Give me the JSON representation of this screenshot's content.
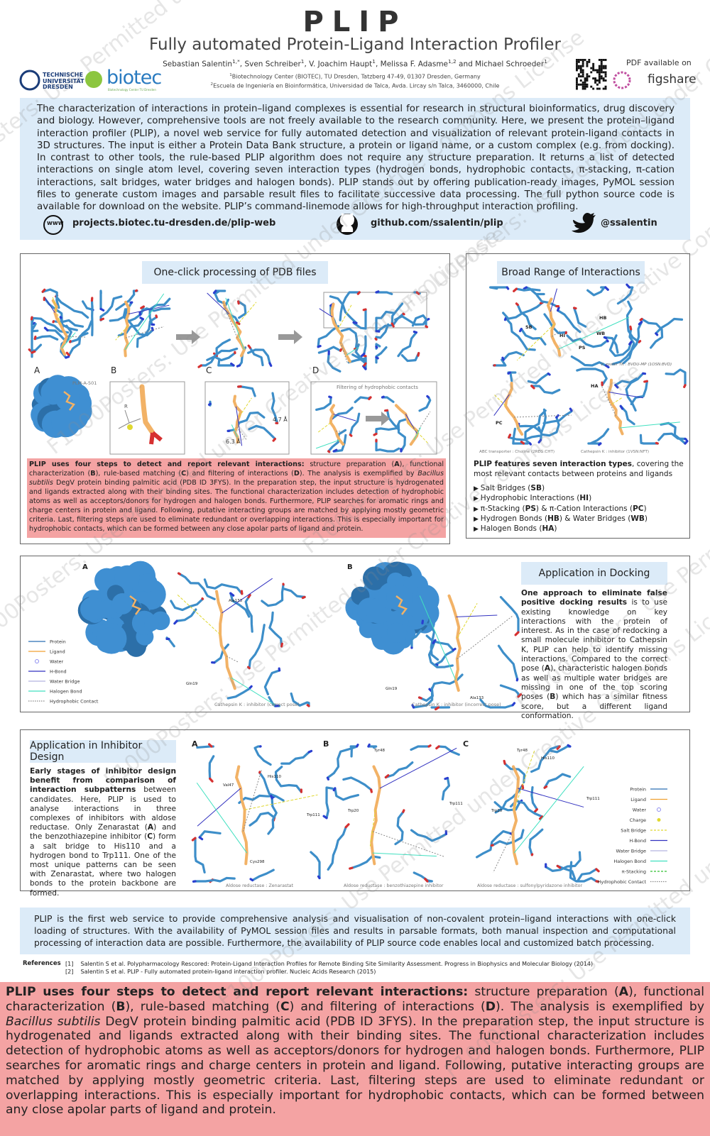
{
  "header": {
    "title": "PLIP",
    "subtitle": "Fully automated Protein-Ligand Interaction Profiler",
    "authors": [
      "Sebastian Salentin",
      "1,*",
      ", Sven Schreiber",
      "1",
      ", V. Joachim Haupt",
      "1",
      ", Melissa F. Adasme",
      "1,2",
      " and Michael Schroeder",
      "1"
    ],
    "affiliations": [
      [
        "1",
        "Biotechnology Center (BIOTEC), TU Dresden, Tatzberg 47-49, 01307 Dresden, Germany"
      ],
      [
        "2",
        "Escuela de Ingeniería en Bioinformática, Universidad de Talca, Avda. Lircay s/n Talca, 3460000, Chile"
      ]
    ],
    "tud_logo": [
      "TECHNISCHE",
      "UNIVERSITÄT",
      "DRESDEN"
    ],
    "biotec_logo": "biotec",
    "biotec_sub": "Biotechnology Center TU Dresden",
    "pdf_note": "PDF available on",
    "figshare": "figshare"
  },
  "abstract": {
    "text": "The characterization of interactions in protein–ligand complexes is essential for research in structural bioinformatics, drug discovery and biology. However, comprehensive tools are not freely available to the research community. Here, we present the protein–ligand interaction profiler (PLIP), a novel web service for fully automated detection and visualization of relevant protein-ligand contacts in 3D structures. The input is either a Protein Data Bank structure, a protein or ligand name, or a custom complex (e.g. from docking). In contrast to other tools, the rule-based PLIP algorithm does not require any structure preparation. It returns a list of detected interactions on single atom level, covering seven interaction types (hydrogen bonds, hydrophobic contacts, π-stacking, π-cation interactions, salt bridges, water bridges and halogen bonds). PLIP stands out by offering publication-ready images, PyMOL session files to generate custom images and parsable result files to facilitate successive data processing. The full python source code is available for download on the website. PLIP’s command-linemode allows for high-throughput interaction profiling.",
    "www_icon": "www",
    "links": [
      "projects.biotec.tu-dresden.de/plip-web",
      "github.com/ssalentin/plip",
      "@ssalentin"
    ]
  },
  "workflow": {
    "heading": "One-click processing of PDB files",
    "labels": [
      "A",
      "B",
      "C",
      "D",
      "PLM-A-501",
      "Filtering of hydrophobic contacts",
      "R",
      "4.7 Å",
      "6.3 Å"
    ],
    "caption": [
      "PLIP uses four steps to detect and report relevant interactions:",
      " structure preparation (",
      "A",
      "), functional characterization (",
      "B",
      "), rule-based matching (",
      "C",
      ") and filtering of interactions (",
      "D",
      "). The analysis is exemplified by ",
      "Bacillus subtilis",
      " DegV protein binding palmitic acid (PDB ID 3FYS). In the preparation step, the input structure is hydrogenated and ligands extracted along with their binding sites.  The functional characterization includes detection of hydrophobic atoms as well as acceptors/donors for hydrogen and halogen bonds. Furthermore, PLIP searches for aromatic rings and charge centers in protein and ligand. Following, putative interacting groups are matched by applying mostly geometric criteria. Last, filtering steps are used to eliminate redundant or overlapping interactions. This is especially important for hydrophobic contacts, which can be formed between any close apolar parts of ligand and protein."
    ]
  },
  "interactions": {
    "heading": "Broad Range of Interactions",
    "labels": [
      "SB",
      "HI",
      "HB",
      "WB",
      "PS",
      "PC",
      "HA"
    ],
    "captions": [
      "V. zoster TK : BVDU-MP (1OSN:BVD)",
      "ABC transporter : Choline (2REG:CHT)",
      "Cathepsin K : inhibitor (1VSN:NFT)"
    ],
    "text": [
      "PLIP features seven interaction types",
      ", covering the most relevant contacts between proteins and ligands"
    ],
    "items": [
      [
        "Salt Bridges (",
        "SB",
        ")"
      ],
      [
        "Hydrophobic Interactions (",
        "HI",
        ")"
      ],
      [
        "π-Stacking (",
        "PS",
        ") & π-Cation Interactions (",
        "PC",
        ")"
      ],
      [
        "Hydrogen Bonds (",
        "HB",
        ") & Water Bridges (",
        "WB",
        ")"
      ],
      [
        "Halogen Bonds (",
        "HA",
        ")"
      ]
    ]
  },
  "docking": {
    "heading": "Application in Docking",
    "text": [
      "One approach to eliminate false positive docking results",
      " is to use existing knowledge on key interactions with the protein of interest. As in the case of redocking a small molecule inhibitor to Cathepsin K, PLIP can help to identify missing interactions. Compared to the correct pose (",
      "A",
      "), characteristic halogen bonds as well as multiple water bridges are missing in one of the top scoring poses (",
      "B",
      ") which has a similar fitness score, but a different ligand conformation."
    ],
    "labels": [
      "A",
      "B",
      "Ala133",
      "Gln19",
      "Gln19",
      "Ala133"
    ],
    "captions": [
      "Cathepsin K : inhibitor (correct pose)",
      "Cathepsin K : inhibitor (incorrect pose)"
    ],
    "legend": [
      {
        "name": "Protein",
        "color": "#2a6fb3",
        "style": "solid"
      },
      {
        "name": "Ligand",
        "color": "#f0a030",
        "style": "solid"
      },
      {
        "name": "Water",
        "color": "#8c8cf0",
        "style": "circle"
      },
      {
        "name": "H-Bond",
        "color": "#3232c0",
        "style": "solid"
      },
      {
        "name": "Water Bridge",
        "color": "#b4b4e0",
        "style": "solid"
      },
      {
        "name": "Halogen Bond",
        "color": "#40e0c0",
        "style": "solid"
      },
      {
        "name": "Hydrophobic Contact",
        "color": "#888888",
        "style": "dotted"
      }
    ]
  },
  "inhibitor": {
    "heading": "Application in Inhibitor Design",
    "text": [
      "Early stages of inhibitor design benefit from comparison of interaction subpatterns",
      " between candidates. Here, PLIP is used to analyse interactions in three complexes of inhibitors with aldose reductase. Only Zenarastat (",
      "A",
      ") and the benzothiazepine inhibitor (",
      "C",
      ") form a salt bridge to His110 and a hydrogen bond to Trp111. One of the most unique patterns can be seen with Zenarastat, where two halogen bonds to the protein backbone are formed."
    ],
    "labels": [
      "A",
      "B",
      "C",
      "Val47",
      "His110",
      "Trp111",
      "Cys298",
      "Tyr48",
      "Trp20",
      "Trp111",
      "Tyr48",
      "His110",
      "Trp20",
      "Trp111"
    ],
    "captions": [
      "Aldose reductase : Zenarastat",
      "Aldose reductase : benzothiazepine inhibitor",
      "Aldose reductase : sulfonylpyridazone inhibitor"
    ],
    "legend": [
      {
        "name": "Protein",
        "color": "#2a6fb3",
        "style": "solid"
      },
      {
        "name": "Ligand",
        "color": "#f0a030",
        "style": "solid"
      },
      {
        "name": "Water",
        "color": "#8c8cf0",
        "style": "circle"
      },
      {
        "name": "Charge",
        "color": "#e0d830",
        "style": "dot"
      },
      {
        "name": "Salt Bridge",
        "color": "#e0d830",
        "style": "dashed"
      },
      {
        "name": "H-Bond",
        "color": "#3232c0",
        "style": "solid"
      },
      {
        "name": "Water Bridge",
        "color": "#b4b4e0",
        "style": "solid"
      },
      {
        "name": "Halogen Bond",
        "color": "#40e0c0",
        "style": "solid"
      },
      {
        "name": "π-Stacking",
        "color": "#30c030",
        "style": "dashed"
      },
      {
        "name": "Hydrophobic Contact",
        "color": "#888888",
        "style": "dotted"
      }
    ]
  },
  "conclusion": "PLIP is the first web service to provide comprehensive analysis and visualisation of non-covalent protein–ligand interactions with one-click loading of structures. With the availability of PyMOL session files and results in parsable formats, both manual inspection and computational processing of interaction data are possible. Furthermore, the availability of PLIP source code enables local and customized batch processing.",
  "references": {
    "label": "References",
    "items": [
      [
        "[1]",
        "Salentin S et al. Polypharmacology Rescored: Protein-Ligand Interaction Profiles for Remote Binding Site Similarity Assessment. Progress in Biophysics and Molecular Biology (2014)"
      ],
      [
        "[2]",
        "Salentin S et al. PLIP - Fully automated protein-ligand interaction profiler. Nucleic Acids Research (2015)"
      ]
    ]
  },
  "watermark": "F1000Posters: Use Permitted under Creative Commons License"
}
